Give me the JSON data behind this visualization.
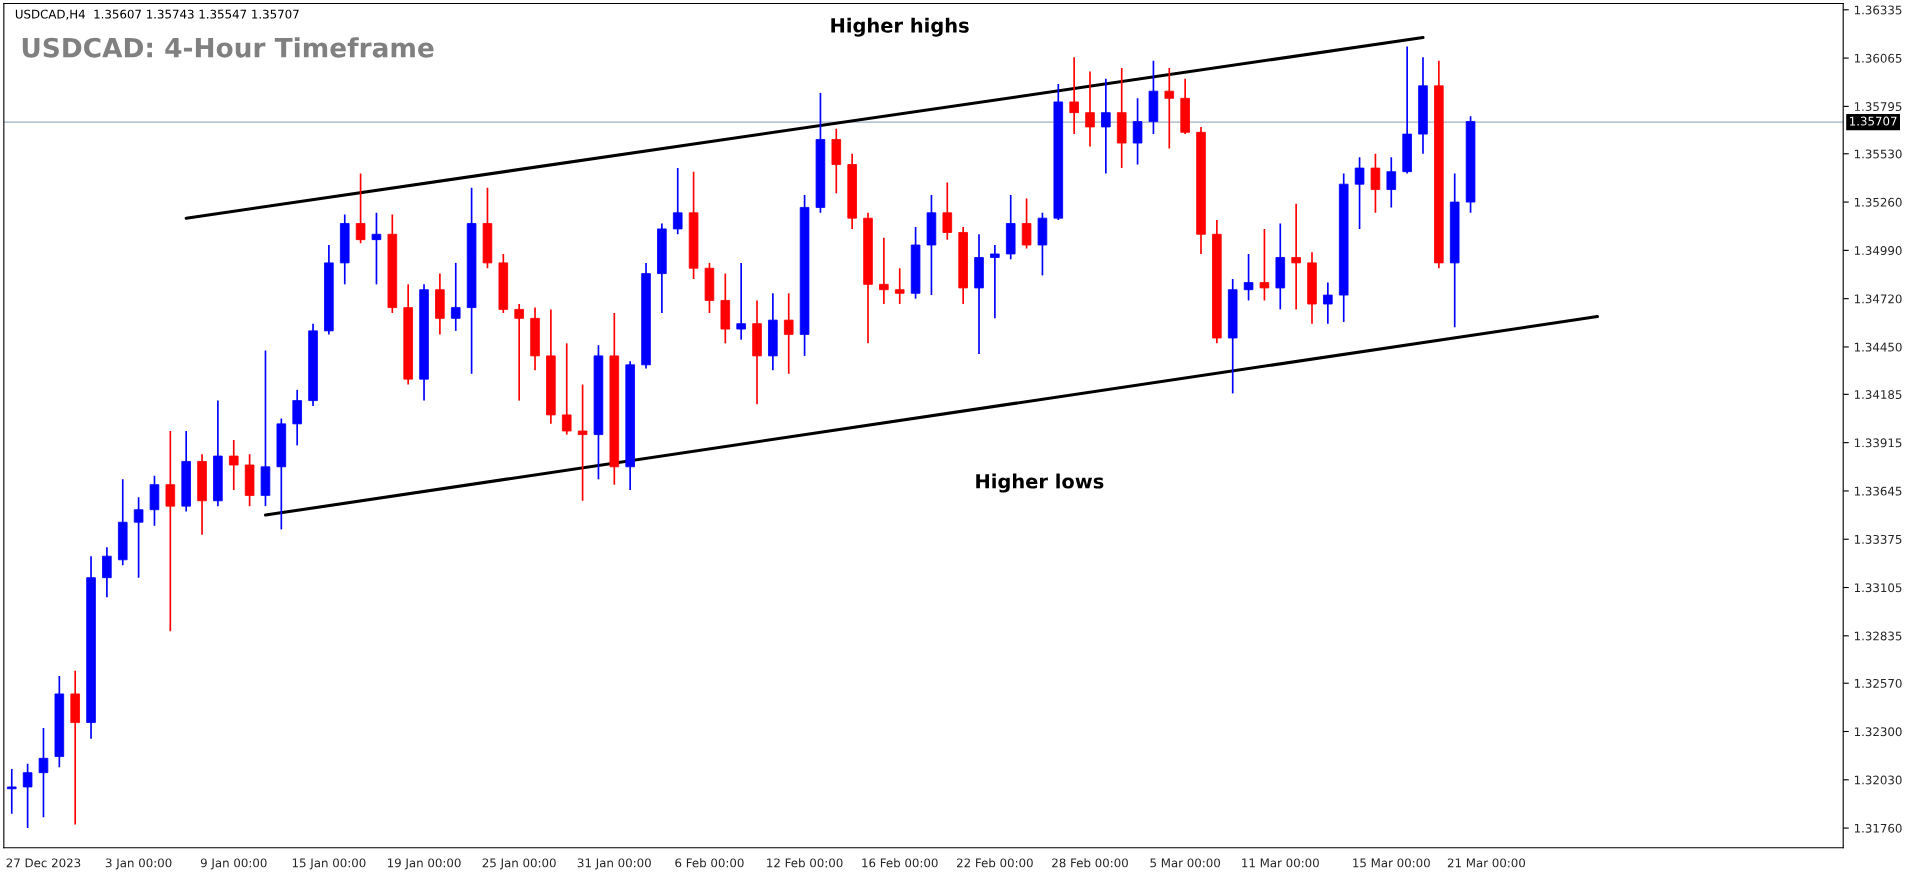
{
  "chart_data": {
    "type": "candlestick",
    "title": "USDCAD: 4-Hour Timeframe",
    "annotations": [
      "USDCAD,H4  1.35607 1.35743 1.35547 1.35707",
      "Higher highs",
      "Higher lows"
    ],
    "categories": [
      null,
      null,
      "27 Dec 2023",
      null,
      null,
      null,
      null,
      null,
      "3 Jan 00:00",
      null,
      null,
      null,
      null,
      null,
      "9 Jan 00:00",
      null,
      null,
      null,
      null,
      null,
      "15 Jan 00:00",
      null,
      null,
      null,
      null,
      null,
      "19 Jan 00:00",
      null,
      null,
      null,
      null,
      null,
      "25 Jan 00:00",
      null,
      null,
      null,
      null,
      null,
      "31 Jan 00:00",
      null,
      null,
      null,
      null,
      null,
      "6 Feb 00:00",
      null,
      null,
      null,
      null,
      null,
      "12 Feb 00:00",
      null,
      null,
      null,
      null,
      null,
      "16 Feb 00:00",
      null,
      null,
      null,
      null,
      null,
      "22 Feb 00:00",
      null,
      null,
      null,
      null,
      null,
      "28 Feb 00:00",
      null,
      null,
      null,
      null,
      null,
      "5 Mar 00:00",
      null,
      null,
      null,
      null,
      null,
      "11 Mar 00:00",
      null,
      null,
      null,
      null,
      null,
      null,
      "15 Mar 00:00",
      null,
      null,
      null,
      null,
      null,
      "21 Mar 00:00",
      null,
      null,
      null,
      null,
      null,
      null,
      null,
      null,
      null,
      null,
      null,
      null,
      null,
      null,
      null,
      null,
      null,
      null,
      null,
      null,
      null,
      null
    ],
    "ohlc": [
      [
        1.3198,
        1.3209,
        1.3184,
        1.3199
      ],
      [
        1.3199,
        1.3212,
        1.3176,
        1.3207
      ],
      [
        1.3207,
        1.3232,
        1.3182,
        1.3215
      ],
      [
        1.3216,
        1.3261,
        1.321,
        1.3251
      ],
      [
        1.3251,
        1.3264,
        1.3178,
        1.3235
      ],
      [
        1.3235,
        1.3328,
        1.3226,
        1.3316
      ],
      [
        1.3316,
        1.3333,
        1.3305,
        1.3328
      ],
      [
        1.3326,
        1.3371,
        1.3323,
        1.3347
      ],
      [
        1.3347,
        1.3361,
        1.3316,
        1.3354
      ],
      [
        1.3354,
        1.3373,
        1.3345,
        1.3368
      ],
      [
        1.3368,
        1.3398,
        1.3286,
        1.3356
      ],
      [
        1.3356,
        1.3398,
        1.3353,
        1.3381
      ],
      [
        1.3381,
        1.3385,
        1.334,
        1.3359
      ],
      [
        1.3359,
        1.3415,
        1.3356,
        1.3384
      ],
      [
        1.3384,
        1.3393,
        1.3365,
        1.3379
      ],
      [
        1.3379,
        1.3385,
        1.3356,
        1.3362
      ],
      [
        1.3362,
        1.3443,
        1.3356,
        1.3378
      ],
      [
        1.3378,
        1.3405,
        1.3343,
        1.3402
      ],
      [
        1.3402,
        1.3421,
        1.339,
        1.3415
      ],
      [
        1.3415,
        1.3458,
        1.3412,
        1.3454
      ],
      [
        1.3454,
        1.3502,
        1.3452,
        1.3492
      ],
      [
        1.3492,
        1.3519,
        1.348,
        1.3514
      ],
      [
        1.3514,
        1.3542,
        1.3503,
        1.3505
      ],
      [
        1.3505,
        1.352,
        1.348,
        1.3508
      ],
      [
        1.3508,
        1.3519,
        1.3464,
        1.3467
      ],
      [
        1.3467,
        1.348,
        1.3424,
        1.3427
      ],
      [
        1.3427,
        1.348,
        1.3415,
        1.3477
      ],
      [
        1.3477,
        1.3486,
        1.3452,
        1.3461
      ],
      [
        1.3461,
        1.3492,
        1.3454,
        1.3467
      ],
      [
        1.3467,
        1.3534,
        1.343,
        1.3514
      ],
      [
        1.3514,
        1.3534,
        1.3489,
        1.3492
      ],
      [
        1.3492,
        1.3497,
        1.3464,
        1.3466
      ],
      [
        1.3466,
        1.3469,
        1.3415,
        1.3461
      ],
      [
        1.3461,
        1.3467,
        1.3432,
        1.344
      ],
      [
        1.344,
        1.3466,
        1.3402,
        1.3407
      ],
      [
        1.3407,
        1.3447,
        1.3396,
        1.3398
      ],
      [
        1.3398,
        1.3424,
        1.3359,
        1.3396
      ],
      [
        1.3396,
        1.3446,
        1.3371,
        1.344
      ],
      [
        1.344,
        1.3464,
        1.3368,
        1.3378
      ],
      [
        1.3378,
        1.3437,
        1.3365,
        1.3435
      ],
      [
        1.3435,
        1.3492,
        1.3433,
        1.3486
      ],
      [
        1.3486,
        1.3514,
        1.3464,
        1.3511
      ],
      [
        1.3511,
        1.3545,
        1.3508,
        1.352
      ],
      [
        1.352,
        1.3543,
        1.3483,
        1.3489
      ],
      [
        1.3489,
        1.3492,
        1.3464,
        1.3471
      ],
      [
        1.3471,
        1.3486,
        1.3447,
        1.3455
      ],
      [
        1.3455,
        1.3492,
        1.3449,
        1.3458
      ],
      [
        1.3458,
        1.3471,
        1.3413,
        1.344
      ],
      [
        1.344,
        1.3475,
        1.3432,
        1.346
      ],
      [
        1.346,
        1.3475,
        1.343,
        1.3452
      ],
      [
        1.3452,
        1.353,
        1.344,
        1.3523
      ],
      [
        1.3523,
        1.3587,
        1.352,
        1.3561
      ],
      [
        1.3561,
        1.3567,
        1.3531,
        1.3547
      ],
      [
        1.3547,
        1.3553,
        1.3511,
        1.3517
      ],
      [
        1.3517,
        1.352,
        1.3447,
        1.348
      ],
      [
        1.348,
        1.3506,
        1.3469,
        1.3477
      ],
      [
        1.3477,
        1.3489,
        1.3469,
        1.3475
      ],
      [
        1.3475,
        1.3512,
        1.3472,
        1.3502
      ],
      [
        1.3502,
        1.353,
        1.3474,
        1.352
      ],
      [
        1.352,
        1.3537,
        1.3505,
        1.3509
      ],
      [
        1.3509,
        1.3512,
        1.3469,
        1.3478
      ],
      [
        1.3478,
        1.3508,
        1.3441,
        1.3495
      ],
      [
        1.3495,
        1.3502,
        1.3461,
        1.3497
      ],
      [
        1.3497,
        1.353,
        1.3494,
        1.3514
      ],
      [
        1.3514,
        1.3528,
        1.35,
        1.3502
      ],
      [
        1.3502,
        1.352,
        1.3485,
        1.3517
      ],
      [
        1.3517,
        1.3592,
        1.3516,
        1.3582
      ],
      [
        1.3582,
        1.3607,
        1.3564,
        1.3576
      ],
      [
        1.3576,
        1.3599,
        1.3557,
        1.3568
      ],
      [
        1.3568,
        1.3595,
        1.3542,
        1.3576
      ],
      [
        1.3576,
        1.3601,
        1.3545,
        1.3559
      ],
      [
        1.3559,
        1.3584,
        1.3547,
        1.3571
      ],
      [
        1.3571,
        1.3605,
        1.3564,
        1.3588
      ],
      [
        1.3588,
        1.3601,
        1.3556,
        1.3584
      ],
      [
        1.3584,
        1.3595,
        1.3564,
        1.3565
      ],
      [
        1.3565,
        1.3568,
        1.3497,
        1.3508
      ],
      [
        1.3508,
        1.3516,
        1.3447,
        1.345
      ],
      [
        1.345,
        1.3483,
        1.3419,
        1.3477
      ],
      [
        1.3477,
        1.3497,
        1.3471,
        1.3481
      ],
      [
        1.3481,
        1.3511,
        1.3471,
        1.3478
      ],
      [
        1.3478,
        1.3514,
        1.3466,
        1.3495
      ],
      [
        1.3495,
        1.3525,
        1.3466,
        1.3492
      ],
      [
        1.3492,
        1.3498,
        1.3458,
        1.3469
      ],
      [
        1.3469,
        1.3481,
        1.3458,
        1.3474
      ],
      [
        1.3474,
        1.3542,
        1.3459,
        1.3536
      ],
      [
        1.3536,
        1.3551,
        1.3511,
        1.3545
      ],
      [
        1.3545,
        1.3553,
        1.352,
        1.3533
      ],
      [
        1.3533,
        1.3551,
        1.3523,
        1.3543
      ],
      [
        1.3543,
        1.3613,
        1.3542,
        1.3564
      ],
      [
        1.3564,
        1.3607,
        1.3553,
        1.3591
      ],
      [
        1.3591,
        1.3605,
        1.3489,
        1.3492
      ],
      [
        1.3492,
        1.3542,
        1.3456,
        1.3526
      ],
      [
        1.3526,
        1.3574,
        1.352,
        1.3571
      ],
      null,
      null,
      null,
      null,
      null,
      null,
      null,
      null,
      null,
      null,
      null,
      null,
      null,
      null,
      null,
      null,
      null,
      null,
      null,
      null,
      null,
      null,
      null
    ],
    "colors": [
      "#0000ff",
      "#0000ff",
      "#0000ff",
      "#0000ff",
      "#ff0000",
      "#0000ff",
      "#0000ff",
      "#0000ff",
      "#0000ff",
      "#0000ff",
      "#ff0000",
      "#0000ff",
      "#ff0000",
      "#0000ff",
      "#ff0000",
      "#ff0000",
      "#0000ff",
      "#0000ff",
      "#0000ff",
      "#0000ff",
      "#0000ff",
      "#0000ff",
      "#ff0000",
      "#0000ff",
      "#ff0000",
      "#ff0000",
      "#0000ff",
      "#ff0000",
      "#0000ff",
      "#0000ff",
      "#ff0000",
      "#ff0000",
      "#ff0000",
      "#ff0000",
      "#ff0000",
      "#ff0000",
      "#ff0000",
      "#0000ff",
      "#ff0000",
      "#0000ff",
      "#0000ff",
      "#0000ff",
      "#0000ff",
      "#ff0000",
      "#ff0000",
      "#ff0000",
      "#0000ff",
      "#ff0000",
      "#0000ff",
      "#ff0000",
      "#0000ff",
      "#0000ff",
      "#ff0000",
      "#ff0000",
      "#ff0000",
      "#ff0000",
      "#ff0000",
      "#0000ff",
      "#0000ff",
      "#ff0000",
      "#ff0000",
      "#0000ff",
      "#0000ff",
      "#0000ff",
      "#ff0000",
      "#0000ff",
      "#0000ff",
      "#ff0000",
      "#ff0000",
      "#0000ff",
      "#ff0000",
      "#0000ff",
      "#0000ff",
      "#ff0000",
      "#ff0000",
      "#ff0000",
      "#ff0000",
      "#0000ff",
      "#0000ff",
      "#ff0000",
      "#0000ff",
      "#ff0000",
      "#ff0000",
      "#0000ff",
      "#0000ff",
      "#0000ff",
      "#ff0000",
      "#0000ff",
      "#0000ff",
      "#0000ff",
      "#ff0000",
      "#0000ff",
      "#0000ff",
      null,
      null,
      null,
      null,
      null,
      null,
      null,
      null,
      null,
      null,
      null,
      null,
      null,
      null,
      null,
      null,
      null,
      null,
      null,
      null,
      null,
      null,
      null
    ],
    "series": [
      {
        "type": "line",
        "color": "#000000",
        "values": [
          null,
          null,
          null,
          null,
          null,
          null,
          null,
          null,
          null,
          null,
          null,
          1.3517,
          null,
          null,
          null,
          null,
          null,
          null,
          null,
          null,
          null,
          null,
          null,
          null,
          null,
          null,
          null,
          null,
          null,
          null,
          null,
          null,
          null,
          null,
          null,
          null,
          null,
          null,
          null,
          null,
          null,
          null,
          null,
          null,
          null,
          null,
          null,
          null,
          null,
          null,
          null,
          null,
          null,
          null,
          null,
          null,
          null,
          null,
          null,
          null,
          null,
          null,
          null,
          null,
          null,
          null,
          null,
          null,
          null,
          null,
          null,
          null,
          null,
          null,
          null,
          null,
          null,
          null,
          null,
          null,
          null,
          null,
          null,
          null,
          null,
          null,
          null,
          null,
          null,
          1.3618,
          null,
          null,
          null,
          null,
          null,
          null,
          null,
          null,
          null,
          null,
          null,
          null,
          null,
          null,
          null,
          null,
          null,
          null,
          null,
          null,
          null,
          null,
          null,
          null,
          null,
          null
        ]
      },
      {
        "type": "line",
        "color": "#000000",
        "values": [
          null,
          null,
          null,
          null,
          null,
          null,
          null,
          null,
          null,
          null,
          null,
          null,
          null,
          null,
          null,
          null,
          1.3351,
          null,
          null,
          null,
          null,
          null,
          null,
          null,
          null,
          null,
          null,
          null,
          null,
          null,
          null,
          null,
          null,
          null,
          null,
          null,
          null,
          null,
          null,
          null,
          null,
          null,
          null,
          null,
          null,
          null,
          null,
          null,
          null,
          null,
          null,
          null,
          null,
          null,
          null,
          null,
          null,
          null,
          null,
          null,
          null,
          null,
          null,
          null,
          null,
          null,
          null,
          null,
          null,
          null,
          null,
          null,
          null,
          null,
          null,
          null,
          null,
          null,
          null,
          null,
          null,
          null,
          null,
          null,
          null,
          null,
          null,
          null,
          null,
          null,
          null,
          null,
          null,
          null,
          null,
          null,
          null,
          null,
          null,
          null,
          1.3462,
          null,
          null,
          null,
          null,
          null,
          null,
          null,
          null,
          null,
          null,
          null,
          null,
          null,
          null,
          null
        ]
      }
    ],
    "ref_lines": [
      {
        "axis": "y",
        "value": 1.35707,
        "label": "1.35707",
        "color": "#9fb0c2"
      }
    ],
    "ylim": [
      1.3165,
      1.3637
    ],
    "yticks": [
      1.36335,
      1.36065,
      1.35795,
      {
        "value": 1.3553,
        "label": "1.35530"
      },
      {
        "value": 1.3526,
        "label": "1.35260"
      },
      {
        "value": 1.3499,
        "label": "1.34990"
      },
      {
        "value": 1.3472,
        "label": "1.34720"
      },
      {
        "value": 1.3445,
        "label": "1.34450"
      },
      1.34185,
      1.33915,
      1.33645,
      1.33375,
      1.33105,
      1.32835,
      {
        "value": 1.3257,
        "label": "1.32570"
      },
      {
        "value": 1.323,
        "label": "1.32300"
      },
      {
        "value": 1.3203,
        "label": "1.32030"
      },
      {
        "value": 1.3176,
        "label": "1.31760"
      }
    ]
  }
}
